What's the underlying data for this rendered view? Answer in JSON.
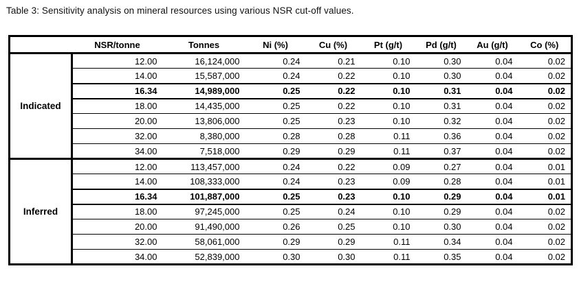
{
  "caption": "Table 3: Sensitivity analysis on mineral resources using various NSR cut-off values.",
  "table": {
    "columns": [
      "NSR/tonne",
      "Tonnes",
      "Ni (%)",
      "Cu (%)",
      "Pt (g/t)",
      "Pd (g/t)",
      "Au (g/t)",
      "Co (%)"
    ],
    "highlight_note": "rows with NSR cut-off 16.34 are emphasized in bold",
    "border_color": "#000000",
    "sections": [
      {
        "label": "Indicated",
        "rows": [
          {
            "bold": false,
            "values": [
              "12.00",
              "16,124,000",
              "0.24",
              "0.21",
              "0.10",
              "0.30",
              "0.04",
              "0.02"
            ]
          },
          {
            "bold": false,
            "values": [
              "14.00",
              "15,587,000",
              "0.24",
              "0.22",
              "0.10",
              "0.30",
              "0.04",
              "0.02"
            ]
          },
          {
            "bold": true,
            "values": [
              "16.34",
              "14,989,000",
              "0.25",
              "0.22",
              "0.10",
              "0.31",
              "0.04",
              "0.02"
            ]
          },
          {
            "bold": false,
            "values": [
              "18.00",
              "14,435,000",
              "0.25",
              "0.22",
              "0.10",
              "0.31",
              "0.04",
              "0.02"
            ]
          },
          {
            "bold": false,
            "values": [
              "20.00",
              "13,806,000",
              "0.25",
              "0.23",
              "0.10",
              "0.32",
              "0.04",
              "0.02"
            ]
          },
          {
            "bold": false,
            "values": [
              "32.00",
              "8,380,000",
              "0.28",
              "0.28",
              "0.11",
              "0.36",
              "0.04",
              "0.02"
            ]
          },
          {
            "bold": false,
            "values": [
              "34.00",
              "7,518,000",
              "0.29",
              "0.29",
              "0.11",
              "0.37",
              "0.04",
              "0.02"
            ]
          }
        ]
      },
      {
        "label": "Inferred",
        "rows": [
          {
            "bold": false,
            "values": [
              "12.00",
              "113,457,000",
              "0.24",
              "0.22",
              "0.09",
              "0.27",
              "0.04",
              "0.01"
            ]
          },
          {
            "bold": false,
            "values": [
              "14.00",
              "108,333,000",
              "0.24",
              "0.23",
              "0.09",
              "0.28",
              "0.04",
              "0.01"
            ]
          },
          {
            "bold": true,
            "values": [
              "16.34",
              "101,887,000",
              "0.25",
              "0.23",
              "0.10",
              "0.29",
              "0.04",
              "0.01"
            ]
          },
          {
            "bold": false,
            "values": [
              "18.00",
              "97,245,000",
              "0.25",
              "0.24",
              "0.10",
              "0.29",
              "0.04",
              "0.02"
            ]
          },
          {
            "bold": false,
            "values": [
              "20.00",
              "91,490,000",
              "0.26",
              "0.25",
              "0.10",
              "0.30",
              "0.04",
              "0.02"
            ]
          },
          {
            "bold": false,
            "values": [
              "32.00",
              "58,061,000",
              "0.29",
              "0.29",
              "0.11",
              "0.34",
              "0.04",
              "0.02"
            ]
          },
          {
            "bold": false,
            "values": [
              "34.00",
              "52,839,000",
              "0.30",
              "0.30",
              "0.11",
              "0.35",
              "0.04",
              "0.02"
            ]
          }
        ]
      }
    ]
  }
}
